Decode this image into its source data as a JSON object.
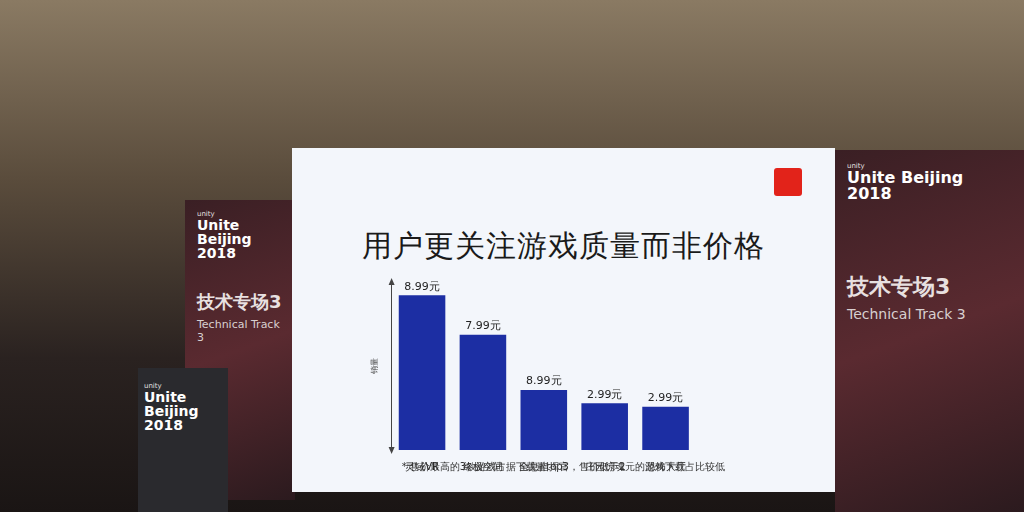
{
  "chart_data": {
    "type": "bar",
    "title": "用户更关注游戏质量而非价格",
    "y_label": "销量",
    "categories": [
      "灵域VR",
      "终极空间",
      "全息指挥官",
      "庄园惊魂",
      "恐怖大厅"
    ],
    "values": [
      129,
      96,
      50,
      39,
      36
    ],
    "price_labels": [
      "8.99元",
      "7.99元",
      "8.99元",
      "2.99元",
      "2.99元"
    ],
    "color": "#1c2ea3",
    "ylim": [
      0,
      140
    ],
    "grid": false,
    "tick_labels": "x",
    "footnote": "* 售价最高的3款游戏占据下载量top3，售价低于2元的游戏下载占比较低"
  },
  "stage": {
    "brand": "unity",
    "event": "Unite Beijing 2018",
    "track": "技术专场3",
    "track_en": "Technical Track 3"
  }
}
